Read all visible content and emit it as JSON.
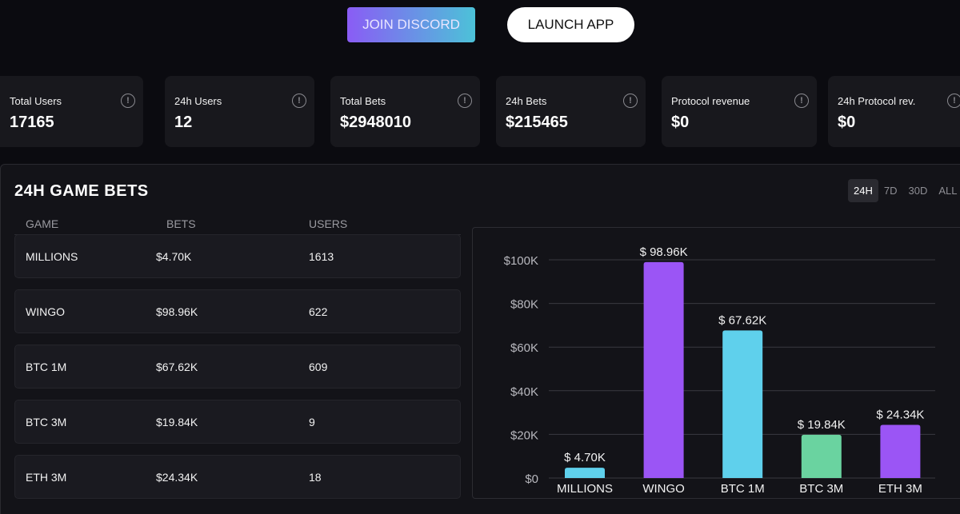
{
  "header": {
    "discord_label": "JOIN DISCORD",
    "launch_label": "LAUNCH APP"
  },
  "stats": [
    {
      "label": "Total Users",
      "value": "17165"
    },
    {
      "label": "24h Users",
      "value": "12"
    },
    {
      "label": "Total Bets",
      "value": "$2948010"
    },
    {
      "label": "24h Bets",
      "value": "$215465"
    },
    {
      "label": "Protocol revenue",
      "value": "$0"
    },
    {
      "label": "24h Protocol rev.",
      "value": "$0"
    }
  ],
  "panel": {
    "title": "24H GAME BETS",
    "ranges": [
      "24H",
      "7D",
      "30D",
      "ALL"
    ],
    "active_range": "24H"
  },
  "table": {
    "columns": [
      "GAME",
      "BETS",
      "USERS"
    ],
    "rows": [
      {
        "game": "MILLIONS",
        "bets": "$4.70K",
        "users": "1613"
      },
      {
        "game": "WINGO",
        "bets": "$98.96K",
        "users": "622"
      },
      {
        "game": "BTC 1M",
        "bets": "$67.62K",
        "users": "609"
      },
      {
        "game": "BTC 3M",
        "bets": "$19.84K",
        "users": "9"
      },
      {
        "game": "ETH 3M",
        "bets": "$24.34K",
        "users": "18"
      }
    ]
  },
  "chart_data": {
    "type": "bar",
    "categories": [
      "MILLIONS",
      "WINGO",
      "BTC 1M",
      "BTC 3M",
      "ETH 3M"
    ],
    "values": [
      4700,
      98960,
      67620,
      19840,
      24340
    ],
    "labels": [
      "$ 4.70K",
      "$ 98.96K",
      "$ 67.62K",
      "$ 19.84K",
      "$ 24.34K"
    ],
    "colors": [
      "#5fd0ec",
      "#9b55f5",
      "#5fd0ec",
      "#6ad3a0",
      "#9b55f5"
    ],
    "yticks": [
      0,
      20000,
      40000,
      60000,
      80000,
      100000
    ],
    "ytick_labels": [
      "$0",
      "$20K",
      "$40K",
      "$60K",
      "$80K",
      "$100K"
    ],
    "ylim": [
      0,
      100000
    ],
    "grid": true,
    "title": "",
    "xlabel": "",
    "ylabel": ""
  }
}
